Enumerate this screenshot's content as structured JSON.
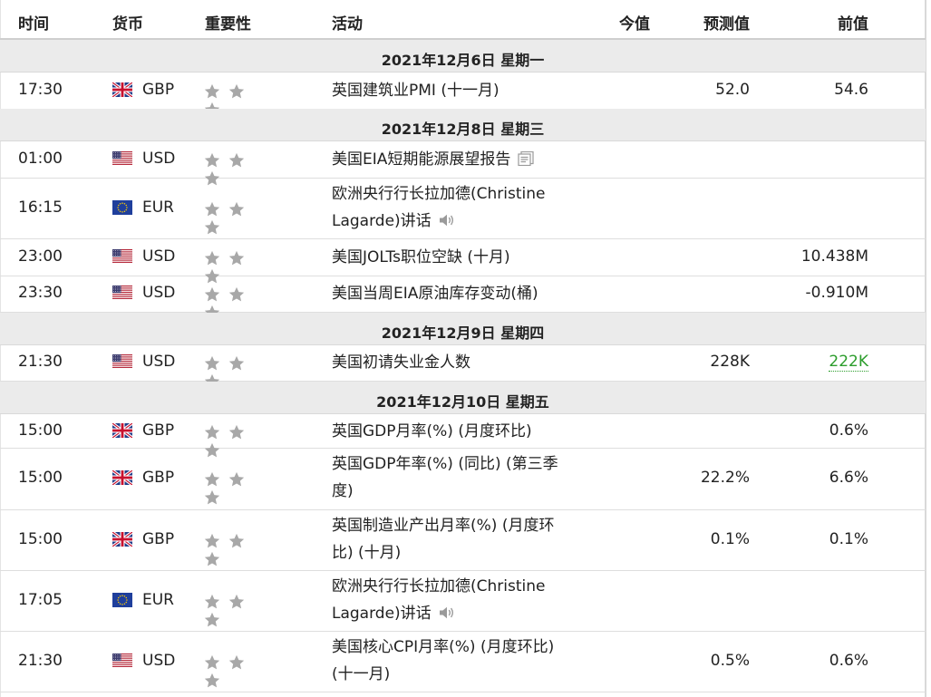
{
  "header": {
    "time": "时间",
    "currency": "货币",
    "importance": "重要性",
    "event": "活动",
    "actual": "今值",
    "forecast": "预测值",
    "previous": "前值"
  },
  "sections": [
    {
      "date": "2021年12月6日  星期一",
      "rows": [
        {
          "time": "17:30",
          "currency": "GBP",
          "flag": "uk-flag",
          "event_lines": [
            "英国建筑业PMI (十一月)"
          ],
          "event_icon": "",
          "forecast": "52.0",
          "previous": "54.6",
          "previous_highlight": false
        }
      ]
    },
    {
      "date": "2021年12月8日  星期三",
      "rows": [
        {
          "time": "01:00",
          "currency": "USD",
          "flag": "us-flag",
          "event_lines": [
            "美国EIA短期能源展望报告"
          ],
          "event_icon": "document-icon",
          "forecast": "",
          "previous": "",
          "previous_highlight": false
        },
        {
          "time": "16:15",
          "currency": "EUR",
          "flag": "eu-flag",
          "event_lines": [
            "欧洲央行行长拉加德(Christine",
            "Lagarde)讲话"
          ],
          "event_icon": "speaker-icon",
          "forecast": "",
          "previous": "",
          "previous_highlight": false
        },
        {
          "time": "23:00",
          "currency": "USD",
          "flag": "us-flag",
          "event_lines": [
            "美国JOLTs职位空缺 (十月)"
          ],
          "event_icon": "",
          "forecast": "",
          "previous": "10.438M",
          "previous_highlight": false
        },
        {
          "time": "23:30",
          "currency": "USD",
          "flag": "us-flag",
          "event_lines": [
            "美国当周EIA原油库存变动(桶)"
          ],
          "event_icon": "",
          "forecast": "",
          "previous": "-0.910M",
          "previous_highlight": false
        }
      ]
    },
    {
      "date": "2021年12月9日  星期四",
      "rows": [
        {
          "time": "21:30",
          "currency": "USD",
          "flag": "us-flag",
          "event_lines": [
            "美国初请失业金人数"
          ],
          "event_icon": "",
          "forecast": "228K",
          "previous": "222K",
          "previous_highlight": true
        }
      ]
    },
    {
      "date": "2021年12月10日  星期五",
      "rows": [
        {
          "time": "15:00",
          "currency": "GBP",
          "flag": "uk-flag",
          "event_lines": [
            "英国GDP月率(%) (月度环比)"
          ],
          "event_icon": "",
          "forecast": "",
          "previous": "0.6%",
          "previous_highlight": false
        },
        {
          "time": "15:00",
          "currency": "GBP",
          "flag": "uk-flag",
          "event_lines": [
            "英国GDP年率(%) (同比) (第三季",
            "度)"
          ],
          "event_icon": "",
          "forecast": "22.2%",
          "previous": "6.6%",
          "previous_highlight": false
        },
        {
          "time": "15:00",
          "currency": "GBP",
          "flag": "uk-flag",
          "event_lines": [
            "英国制造业产出月率(%) (月度环",
            "比) (十月)"
          ],
          "event_icon": "",
          "forecast": "0.1%",
          "previous": "0.1%",
          "previous_highlight": false
        },
        {
          "time": "17:05",
          "currency": "EUR",
          "flag": "eu-flag",
          "event_lines": [
            "欧洲央行行长拉加德(Christine",
            "Lagarde)讲话"
          ],
          "event_icon": "speaker-icon",
          "forecast": "",
          "previous": "",
          "previous_highlight": false
        },
        {
          "time": "21:30",
          "currency": "USD",
          "flag": "us-flag",
          "event_lines": [
            "美国核心CPI月率(%) (月度环比)",
            "(十一月)"
          ],
          "event_icon": "",
          "forecast": "0.5%",
          "previous": "0.6%",
          "previous_highlight": false
        }
      ]
    }
  ],
  "importance_stars": 3,
  "colors": {
    "star": "#a8a8a8",
    "date_band": "#ebebeb",
    "previous_highlight": "#2c9d2c",
    "uk_blue": "#1f3c88",
    "uk_red": "#c8102e",
    "us_red": "#b22234",
    "us_blue": "#3c3b6e",
    "eu_blue": "#1f3f9c",
    "eu_gold": "#ffcc00"
  }
}
